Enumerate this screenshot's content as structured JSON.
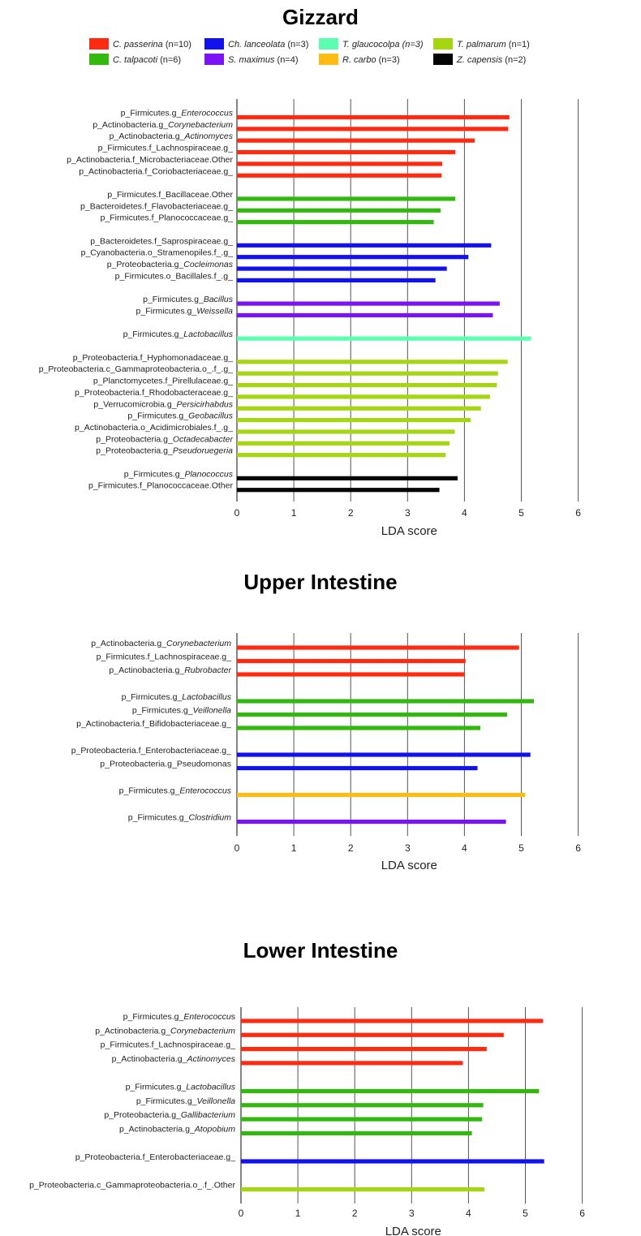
{
  "legend": [
    {
      "genus": "C. passerina",
      "note": " (n=10)",
      "color": "#ff2a12"
    },
    {
      "genus": "C. talpacoti",
      "note": " (n=6)",
      "color": "#33b80f"
    },
    {
      "genus": "Ch. lanceolata",
      "note": " (n=3)",
      "color": "#1212ee"
    },
    {
      "genus": "S. maximus",
      "note": " (n=4)",
      "color": "#7a14f5"
    },
    {
      "genus": "T. glaucocolpa (n=3)",
      "note": "",
      "color": "#5cffb0"
    },
    {
      "genus": "R. carbo",
      "note": " (n=3)",
      "color": "#ffbc14"
    },
    {
      "genus": "T. palmarum",
      "note": " (n=1)",
      "color": "#a6d611"
    },
    {
      "genus": "Z. capensis",
      "note": " (n=2)",
      "color": "#050505"
    }
  ],
  "chart_data": [
    {
      "type": "bar",
      "orientation": "horizontal",
      "title": "Gizzard",
      "xlabel": "LDA score",
      "xlim": [
        0,
        6
      ],
      "xticks": [
        0,
        1,
        2,
        3,
        4,
        5,
        6
      ],
      "grid": "vertical lines",
      "groups": [
        {
          "color": "#ff2a12",
          "bars": [
            {
              "prefix": "p_Firmicutes.g_",
              "italic": "Enterococcus",
              "suffix": "",
              "value": 4.79
            },
            {
              "prefix": "p_Actinobacteria.g_",
              "italic": "Corynebacterium",
              "suffix": "",
              "value": 4.77
            },
            {
              "prefix": "p_Actinobacteria.g_",
              "italic": "Actinomyces",
              "suffix": "",
              "value": 4.18
            },
            {
              "prefix": "p_Firmicutes.f_Lachnospiraceae.g_",
              "italic": "",
              "suffix": "",
              "value": 3.84
            },
            {
              "prefix": "p_Actinobacteria.f_Microbacteriaceae.Other",
              "italic": "",
              "suffix": "",
              "value": 3.61
            },
            {
              "prefix": "p_Actinobacteria.f_Coriobacteriaceae.g_",
              "italic": "",
              "suffix": "",
              "value": 3.6
            }
          ]
        },
        {
          "color": "#33b80f",
          "bars": [
            {
              "prefix": "p_Firmicutes.f_Bacillaceae.Other",
              "italic": "",
              "suffix": "",
              "value": 3.84
            },
            {
              "prefix": "p_Bacteroidetes.f_Flavobacteriaceae.g_",
              "italic": "",
              "suffix": "",
              "value": 3.58
            },
            {
              "prefix": "p_Firmicutes.f_Planococcaceae.g_",
              "italic": "",
              "suffix": "",
              "value": 3.46
            }
          ]
        },
        {
          "color": "#1212ee",
          "bars": [
            {
              "prefix": "p_Bacteroidetes.f_Saprospiraceae.g_",
              "italic": "",
              "suffix": "",
              "value": 4.47
            },
            {
              "prefix": "p_Cyanobacteria.o_Stramenopiles.f_.g_",
              "italic": "",
              "suffix": "",
              "value": 4.07
            },
            {
              "prefix": "p_Proteobacteria.g_",
              "italic": "Cocleimonas",
              "suffix": "",
              "value": 3.69
            },
            {
              "prefix": "p_Firmicutes.o_Bacillales.f_.g_",
              "italic": "",
              "suffix": "",
              "value": 3.49
            }
          ]
        },
        {
          "color": "#7a14f5",
          "bars": [
            {
              "prefix": "p_Firmicutes.g_",
              "italic": "Bacillus",
              "suffix": "",
              "value": 4.62
            },
            {
              "prefix": "p_Firmicutes.g_",
              "italic": "Weissella",
              "suffix": "",
              "value": 4.5
            }
          ]
        },
        {
          "color": "#5cffb0",
          "bars": [
            {
              "prefix": "p_Firmicutes.g_",
              "italic": "Lactobacillus",
              "suffix": "",
              "value": 5.17
            }
          ]
        },
        {
          "color": "#a6d611",
          "bars": [
            {
              "prefix": "p_Proteobacteria.f_Hyphomonadaceae.g_",
              "italic": "",
              "suffix": "",
              "value": 4.76
            },
            {
              "prefix": "p_Proteobacteria.c_Gammaproteobacteria.o_.f_.g_",
              "italic": "",
              "suffix": "",
              "value": 4.59
            },
            {
              "prefix": "p_Planctomycetes.f_Pirellulaceae.g_",
              "italic": "",
              "suffix": "",
              "value": 4.57
            },
            {
              "prefix": "p_Proteobacteria.f_Rhodobacteraceae.g_",
              "italic": "",
              "suffix": "",
              "value": 4.45
            },
            {
              "prefix": "p_Verrucomicrobia.g_",
              "italic": "Persicirhabdus",
              "suffix": "",
              "value": 4.29
            },
            {
              "prefix": "p_Firmicutes.g_",
              "italic": "Geobacillus",
              "suffix": "",
              "value": 4.11
            },
            {
              "prefix": "p_Actinobacteria.o_Acidimicrobiales.f_.g_",
              "italic": "",
              "suffix": "",
              "value": 3.83
            },
            {
              "prefix": "p_Proteobacteria.g_",
              "italic": "Octadecabacter",
              "suffix": "",
              "value": 3.74
            },
            {
              "prefix": "p_Proteobacteria.g_",
              "italic": "Pseudoruegeria",
              "suffix": "",
              "value": 3.67
            }
          ]
        },
        {
          "color": "#050505",
          "bars": [
            {
              "prefix": "p_Firmicutes.g_",
              "italic": "Planococcus",
              "suffix": "",
              "value": 3.88
            },
            {
              "prefix": "p_Firmicutes.f_Planococcaceae.Other",
              "italic": "",
              "suffix": "",
              "value": 3.56
            }
          ]
        }
      ]
    },
    {
      "type": "bar",
      "orientation": "horizontal",
      "title": "Upper Intestine",
      "xlabel": "LDA score",
      "xlim": [
        0,
        6
      ],
      "xticks": [
        0,
        1,
        2,
        3,
        4,
        5,
        6
      ],
      "grid": "vertical lines",
      "groups": [
        {
          "color": "#ff2a12",
          "bars": [
            {
              "prefix": "p_Actinobacteria.g_",
              "italic": "Corynebacterium",
              "suffix": "",
              "value": 4.96
            },
            {
              "prefix": "p_Firmicutes.f_Lachnospiraceae.g_",
              "italic": "",
              "suffix": "",
              "value": 4.02
            },
            {
              "prefix": "p_Actinobacteria.g_",
              "italic": "Rubrobacter",
              "suffix": "",
              "value": 4.0
            }
          ]
        },
        {
          "color": "#33b80f",
          "bars": [
            {
              "prefix": "p_Firmicutes.g_",
              "italic": "Lactobacillus",
              "suffix": "",
              "value": 5.22
            },
            {
              "prefix": "p_Firmicutes.g_",
              "italic": "Veillonella",
              "suffix": "",
              "value": 4.75
            },
            {
              "prefix": "p_Actinobacteria.f_Bifidobacteriaceae.g_",
              "italic": "",
              "suffix": "",
              "value": 4.28
            }
          ]
        },
        {
          "color": "#1212ee",
          "bars": [
            {
              "prefix": "p_Proteobacteria.f_Enterobacteriaceae.g_",
              "italic": "",
              "suffix": "",
              "value": 5.16
            },
            {
              "prefix": "p_Proteobacteria.g_Pseudomonas",
              "italic": "",
              "suffix": "",
              "value": 4.23
            }
          ]
        },
        {
          "color": "#ffbc14",
          "bars": [
            {
              "prefix": "p_Firmicutes.g_",
              "italic": "Enterococcus",
              "suffix": "",
              "value": 5.07
            }
          ]
        },
        {
          "color": "#7a14f5",
          "bars": [
            {
              "prefix": "p_Firmicutes.g_",
              "italic": "Clostridium",
              "suffix": "",
              "value": 4.73
            }
          ]
        }
      ]
    },
    {
      "type": "bar",
      "orientation": "horizontal",
      "title": "Lower Intestine",
      "xlabel": "LDA score",
      "xlim": [
        0,
        6
      ],
      "xticks": [
        0,
        1,
        2,
        3,
        4,
        5,
        6
      ],
      "grid": "vertical lines",
      "groups": [
        {
          "color": "#ff2a12",
          "bars": [
            {
              "prefix": "p_Firmicutes.g_",
              "italic": "Enterococcu",
              "suffix": "s",
              "value": 5.31
            },
            {
              "prefix": "p_Actinobacteria.g_",
              "italic": "Corynebacterium",
              "suffix": "",
              "value": 4.62
            },
            {
              "prefix": "p_Firmicutes.f_Lachnospiraceae.g_",
              "italic": "",
              "suffix": "",
              "value": 4.32
            },
            {
              "prefix": "p_Actinobacteria.g_",
              "italic": "Actinomyces",
              "suffix": "",
              "value": 3.9
            }
          ]
        },
        {
          "color": "#33b80f",
          "bars": [
            {
              "prefix": "p_Firmicutes.g_",
              "italic": "Lactobacillus",
              "suffix": "",
              "value": 5.24
            },
            {
              "prefix": "p_Firmicutes.g_",
              "italic": "Veillonella",
              "suffix": "",
              "value": 4.26
            },
            {
              "prefix": "p_Proteobacteria.g_",
              "italic": "Gallibacterium",
              "suffix": "",
              "value": 4.24
            },
            {
              "prefix": "p_Actinobacteria.g_",
              "italic": "Atopobium",
              "suffix": "",
              "value": 4.06
            }
          ]
        },
        {
          "color": "#1212ee",
          "bars": [
            {
              "prefix": "p_Proteobacteria.f_Enterobacteriaceae.g_",
              "italic": "",
              "suffix": "",
              "value": 5.33
            }
          ]
        },
        {
          "color": "#a6d611",
          "bars": [
            {
              "prefix": "p_Proteobacteria.c_Gammaproteobacteria.o_.f_.Other",
              "italic": "",
              "suffix": "",
              "value": 4.28
            }
          ]
        }
      ]
    }
  ]
}
